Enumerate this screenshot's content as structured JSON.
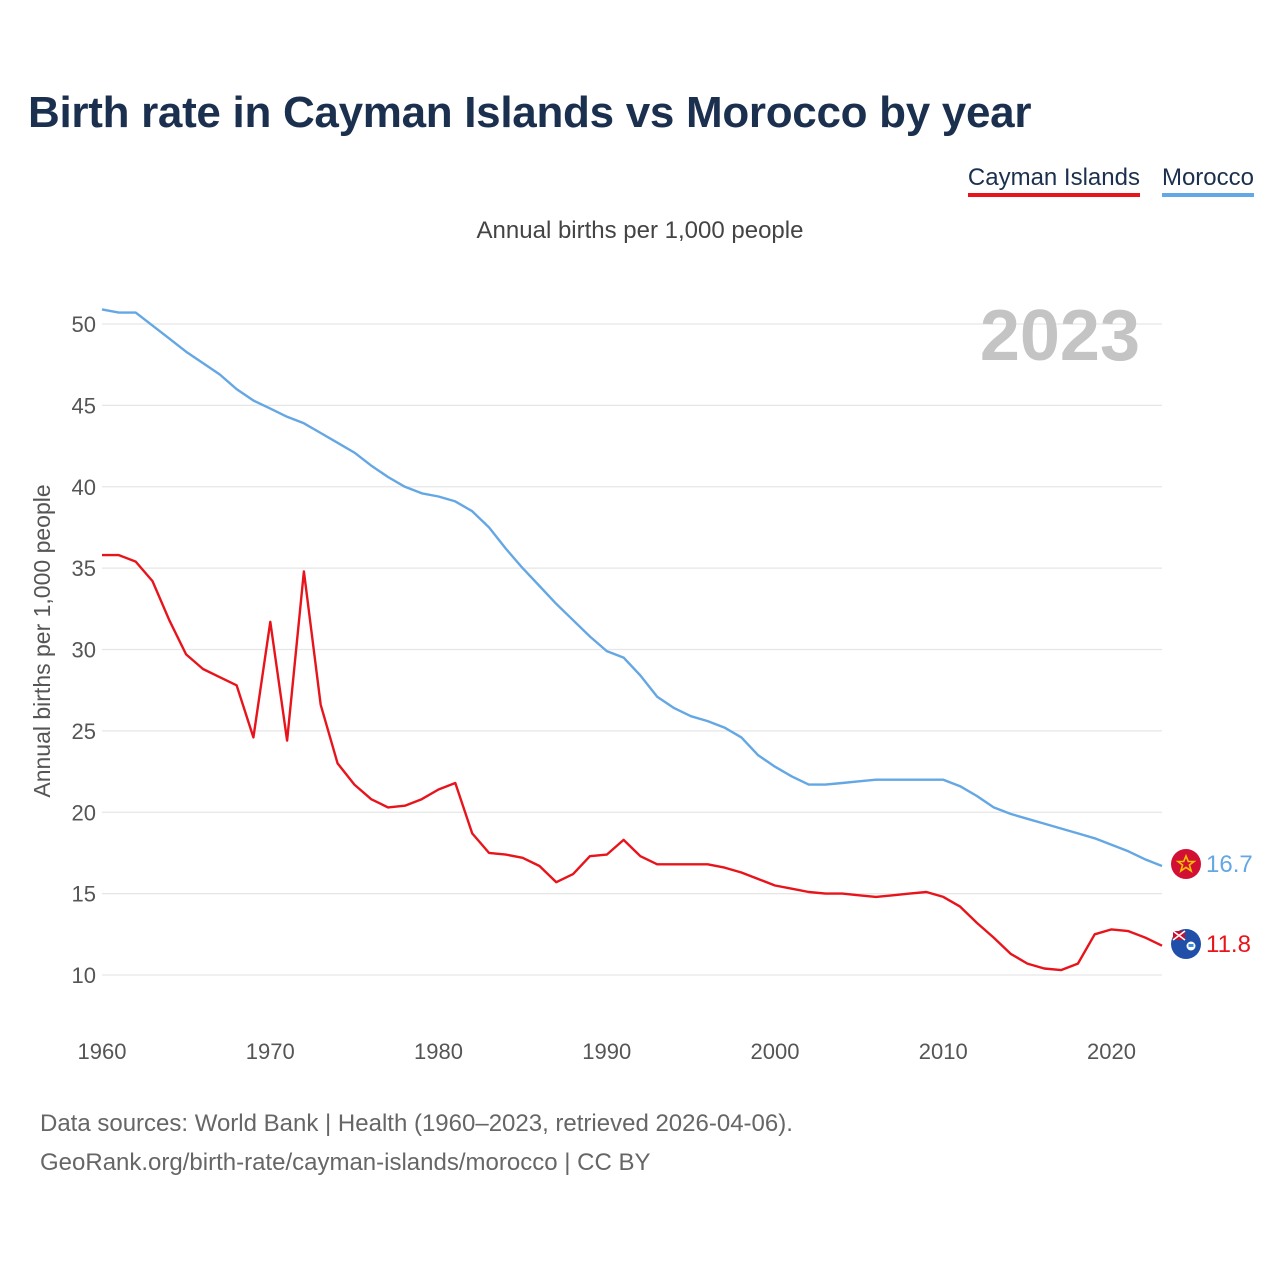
{
  "title": "Birth rate in Cayman Islands vs Morocco by year",
  "subtitle": "Annual births per 1,000 people",
  "legend": [
    {
      "name": "Cayman Islands",
      "color": "#e8141b"
    },
    {
      "name": "Morocco",
      "color": "#64a7e4"
    }
  ],
  "year_overlay": "2023",
  "footer": {
    "line1": "Data sources: World Bank | Health (1960–2023, retrieved 2026-04-06).",
    "line2": "GeoRank.org/birth-rate/cayman-islands/morocco | CC BY"
  },
  "chart_data": {
    "type": "line",
    "title": "Birth rate in Cayman Islands vs Morocco by year",
    "xlabel": "",
    "ylabel": "Annual births per 1,000 people",
    "xlim": [
      1960,
      2023
    ],
    "ylim": [
      10,
      50
    ],
    "x_ticks": [
      1960,
      1970,
      1980,
      1990,
      2000,
      2010,
      2020
    ],
    "y_ticks": [
      10,
      15,
      20,
      25,
      30,
      35,
      40,
      45,
      50
    ],
    "grid": true,
    "x": [
      1960,
      1961,
      1962,
      1963,
      1964,
      1965,
      1966,
      1967,
      1968,
      1969,
      1970,
      1971,
      1972,
      1973,
      1974,
      1975,
      1976,
      1977,
      1978,
      1979,
      1980,
      1981,
      1982,
      1983,
      1984,
      1985,
      1986,
      1987,
      1988,
      1989,
      1990,
      1991,
      1992,
      1993,
      1994,
      1995,
      1996,
      1997,
      1998,
      1999,
      2000,
      2001,
      2002,
      2003,
      2004,
      2005,
      2006,
      2007,
      2008,
      2009,
      2010,
      2011,
      2012,
      2013,
      2014,
      2015,
      2016,
      2017,
      2018,
      2019,
      2020,
      2021,
      2022,
      2023
    ],
    "series": [
      {
        "name": "Cayman Islands",
        "color": "#e8141b",
        "end_label": "11.8",
        "values": [
          35.8,
          35.8,
          35.4,
          34.2,
          31.8,
          29.7,
          28.8,
          28.3,
          27.8,
          24.6,
          31.7,
          24.4,
          34.8,
          26.6,
          23.0,
          21.7,
          20.8,
          20.3,
          20.4,
          20.8,
          21.4,
          21.8,
          18.7,
          17.5,
          17.4,
          17.2,
          16.7,
          15.7,
          16.2,
          17.3,
          17.4,
          18.3,
          17.3,
          16.8,
          16.8,
          16.8,
          16.8,
          16.6,
          16.3,
          15.9,
          15.5,
          15.3,
          15.1,
          15.0,
          15.0,
          14.9,
          14.8,
          14.9,
          15.0,
          15.1,
          14.8,
          14.2,
          13.2,
          12.3,
          11.3,
          10.7,
          10.4,
          10.3,
          10.7,
          12.5,
          12.8,
          12.7,
          12.3,
          11.8
        ]
      },
      {
        "name": "Morocco",
        "color": "#64a7e4",
        "end_label": "16.7",
        "values": [
          50.9,
          50.7,
          50.7,
          49.9,
          49.1,
          48.3,
          47.6,
          46.9,
          46.0,
          45.3,
          44.8,
          44.3,
          43.9,
          43.3,
          42.7,
          42.1,
          41.3,
          40.6,
          40.0,
          39.6,
          39.4,
          39.1,
          38.5,
          37.5,
          36.2,
          35.0,
          33.9,
          32.8,
          31.8,
          30.8,
          29.9,
          29.5,
          28.4,
          27.1,
          26.4,
          25.9,
          25.6,
          25.2,
          24.6,
          23.5,
          22.8,
          22.2,
          21.7,
          21.7,
          21.8,
          21.9,
          22.0,
          22.0,
          22.0,
          22.0,
          22.0,
          21.6,
          21.0,
          20.3,
          19.9,
          19.6,
          19.3,
          19.0,
          18.7,
          18.4,
          18.0,
          17.6,
          17.1,
          16.7
        ]
      }
    ]
  }
}
